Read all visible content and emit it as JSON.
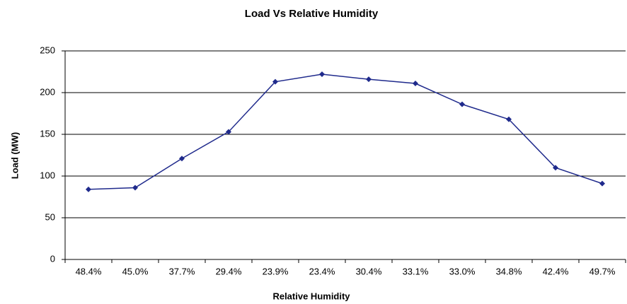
{
  "chart_data": {
    "type": "line",
    "title": "Load Vs Relative Humidity",
    "x_label": "Relative Humidity",
    "y_label": "Load (MW)",
    "categories": [
      "48.4%",
      "45.0%",
      "37.7%",
      "29.4%",
      "23.9%",
      "23.4%",
      "30.4%",
      "33.1%",
      "33.0%",
      "34.8%",
      "42.4%",
      "49.7%"
    ],
    "series": [
      {
        "name": "Load",
        "color": "#1f2a8c",
        "values": [
          84,
          86,
          121,
          153,
          213,
          222,
          216,
          211,
          186,
          168,
          110,
          91
        ]
      }
    ],
    "ylim": [
      0,
      250
    ],
    "yticks": [
      0,
      50,
      100,
      150,
      200,
      250
    ],
    "grid": true
  }
}
